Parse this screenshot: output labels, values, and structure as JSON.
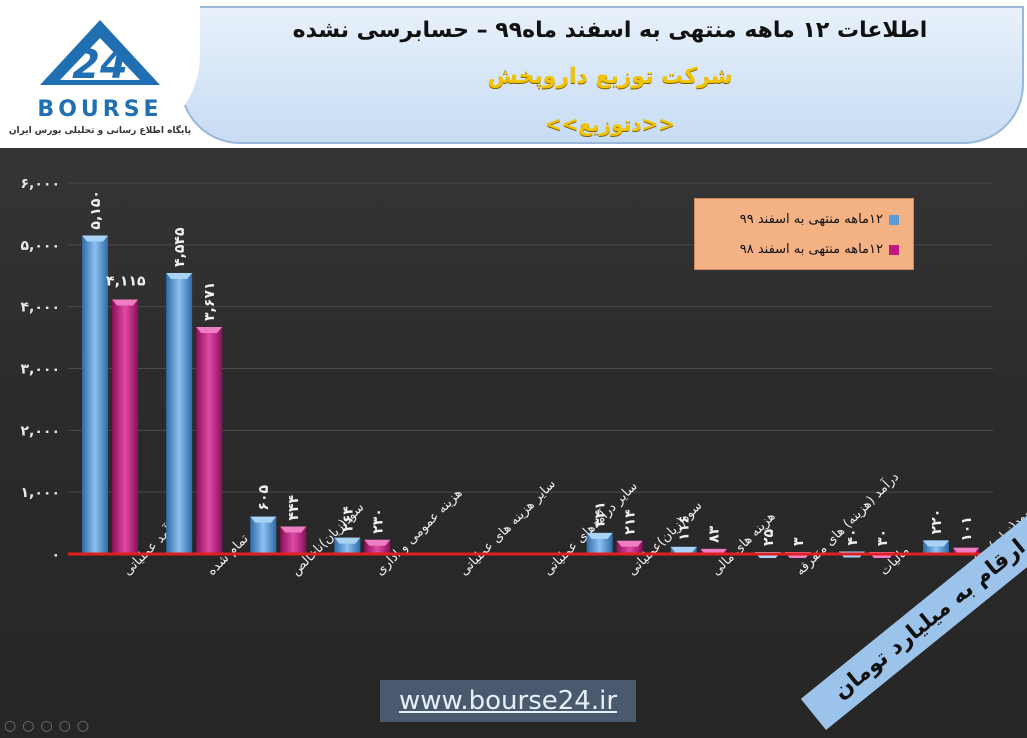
{
  "header": {
    "title_main": "اطلاعات ۱۲ ماهه منتهی به اسفند ماه۹۹ – حسابرسی نشده",
    "title_company": "شرکت توزیع داروپخش",
    "title_ticker": "<<دتوزیع>>"
  },
  "logo": {
    "name": "BOURSE",
    "number": "24",
    "tagline": "پایگاه اطلاع رسانی و تحلیلی بورس ایران"
  },
  "footer": {
    "url": "www.bourse24.ir",
    "unit_banner": "ارقام به میلیارد تومان"
  },
  "colors": {
    "series1": "#5b9bd5",
    "series2": "#c2187f",
    "baseline": "#e02020",
    "gridline": "#4a4a4a",
    "legend_bg": "#f4b183"
  },
  "chart_data": {
    "type": "bar",
    "ylim": [
      0,
      6000
    ],
    "yticks": [
      0,
      1000,
      2000,
      3000,
      4000,
      5000,
      6000
    ],
    "ytick_labels": [
      "۰",
      "۱,۰۰۰",
      "۲,۰۰۰",
      "۳,۰۰۰",
      "۴,۰۰۰",
      "۵,۰۰۰",
      "۶,۰۰۰"
    ],
    "legend_position": "top-right",
    "categories": [
      "درآمد عملیاتی",
      "بهای تمام شده",
      "سود(زیان)ناخالص",
      "هزینه عمومی و اداری",
      "سایر هزینه های عملیاتی",
      "سایر درآمدهای عملیاتی",
      "سود(زیان)عملیاتی",
      "هزینه های مالی",
      "درآمد (هزینه) های متفرقه",
      "مالیات",
      "سود(زیان) خالص"
    ],
    "series": [
      {
        "name": "۱۲ماهه منتهی به اسفند ۹۹",
        "values": [
          5150,
          4545,
          605,
          264,
          null,
          null,
          341,
          116,
          25,
          40,
          220
        ],
        "labels": [
          "۵,۱۵۰",
          "۴,۵۴۵",
          "۶۰۵",
          "۲۶۴",
          "",
          "",
          "۳۴۱",
          "۱۱۶",
          "۲۵",
          "۴۰",
          "۲۲۰"
        ]
      },
      {
        "name": "۱۲ماهه منتهی به اسفند ۹۸",
        "values": [
          4115,
          3671,
          444,
          230,
          null,
          null,
          214,
          83,
          3,
          30,
          101
        ],
        "labels": [
          "۴,۱۱۵",
          "۳,۶۷۱",
          "۴۴۴",
          "۲۳۰",
          "",
          "",
          "۲۱۴",
          "۸۳",
          "۳",
          "۳۰",
          "۱۰۱"
        ]
      }
    ]
  }
}
